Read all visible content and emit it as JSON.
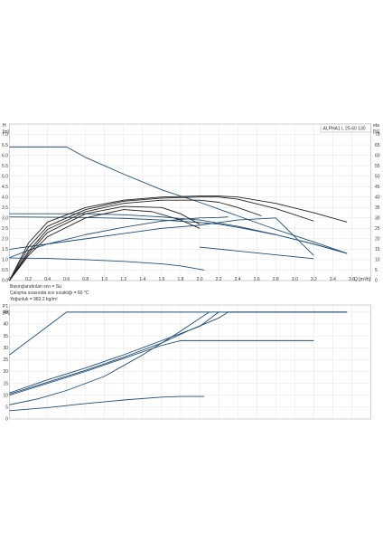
{
  "chart_data": [
    {
      "type": "line",
      "title": "ALPHA1 L 25-60  130",
      "xlabel": "Q [m³/h]",
      "ylabel_left_symbol": "H",
      "ylabel_left_unit": "[m]",
      "ylabel_right_symbol": "eta",
      "ylabel_right_unit": "[%]",
      "xlim": [
        0,
        3.8
      ],
      "ylim": [
        0,
        7.5
      ],
      "ylim_right": [
        0,
        75
      ],
      "x_ticks": [
        "0",
        "0.2",
        "0.4",
        "0.6",
        "0.8",
        "1.0",
        "1.2",
        "1.4",
        "1.6",
        "1.8",
        "2.0",
        "2.2",
        "2.4",
        "2.6",
        "2.8",
        "3.0",
        "3.2",
        "3.4",
        "3.6"
      ],
      "y_ticks": [
        "0.0",
        "0.5",
        "1.0",
        "1.5",
        "2.0",
        "2.5",
        "3.0",
        "3.5",
        "4.0",
        "4.5",
        "5.0",
        "5.5",
        "6.0",
        "6.5",
        "7.0"
      ],
      "y_ticks_right": [
        "0",
        "5",
        "10",
        "15",
        "20",
        "25",
        "30",
        "35",
        "40",
        "45",
        "50",
        "55",
        "60",
        "65",
        "70"
      ],
      "grid": true,
      "notes": [
        "Basınçlandırılan sıvı = Su",
        "Çalışma sırasında sıvı sıcaklığı = 60 °C",
        "Yoğunluk = 983.2 kg/m³"
      ],
      "series": [
        {
          "color": "#1f4e79",
          "width": 0.9,
          "x": [
            0,
            0.6,
            0.8,
            1.2,
            1.6,
            2.0,
            2.4,
            2.8,
            3.2,
            3.55
          ],
          "y": [
            6.4,
            6.4,
            5.9,
            5.1,
            4.35,
            3.75,
            3.1,
            2.45,
            1.85,
            1.3
          ]
        },
        {
          "color": "#1f4e79",
          "width": 0.9,
          "x": [
            0,
            0.8,
            1.2,
            1.6,
            2.0,
            2.2,
            2.4,
            2.8,
            3.2,
            3.55
          ],
          "y": [
            3.2,
            3.2,
            3.15,
            3.05,
            2.9,
            2.75,
            2.6,
            2.2,
            1.75,
            1.3
          ]
        },
        {
          "color": "#1f4e79",
          "width": 0.9,
          "x": [
            0,
            0.8,
            1.2,
            1.6,
            2.0,
            2.2,
            2.4,
            2.8,
            3.2,
            3.55
          ],
          "y": [
            3.05,
            3.02,
            2.98,
            2.9,
            2.78,
            2.7,
            2.55,
            2.2,
            1.75,
            1.3
          ]
        },
        {
          "color": "#1f4e79",
          "width": 0.9,
          "x": [
            0,
            0.4,
            0.8,
            1.2,
            1.6,
            2.0,
            2.4,
            2.8,
            3.2
          ],
          "y": [
            1.5,
            1.75,
            2.0,
            2.25,
            2.5,
            2.65,
            2.9,
            3.0,
            1.2
          ]
        },
        {
          "color": "#1f4e79",
          "width": 0.9,
          "x": [
            0,
            0.2,
            0.4,
            0.8,
            1.2,
            1.6,
            2.0,
            2.2,
            2.3
          ],
          "y": [
            1.1,
            1.45,
            1.75,
            2.2,
            2.55,
            2.85,
            3.0,
            3.02,
            3.05
          ]
        },
        {
          "color": "#1f4e79",
          "width": 0.9,
          "x": [
            0,
            0.4,
            0.8,
            1.2,
            1.6,
            1.8,
            2.05
          ],
          "y": [
            1.08,
            1.06,
            1.0,
            0.92,
            0.8,
            0.7,
            0.5
          ]
        },
        {
          "color": "#1f4e79",
          "width": 0.9,
          "x": [
            2.0,
            3.2
          ],
          "y": [
            1.6,
            1.05
          ]
        },
        {
          "color": "#222222",
          "width": 0.9,
          "x": [
            0,
            0.2,
            0.4,
            0.8,
            1.2,
            1.6,
            2.0,
            2.2,
            2.4,
            2.8,
            3.2,
            3.55
          ],
          "y": [
            0,
            1.8,
            2.8,
            3.5,
            3.85,
            4.0,
            4.05,
            4.05,
            4.0,
            3.7,
            3.25,
            2.8
          ]
        },
        {
          "color": "#222222",
          "width": 0.9,
          "x": [
            0,
            0.2,
            0.4,
            0.8,
            1.2,
            1.6,
            2.0,
            2.2,
            2.4,
            2.8,
            3.2
          ],
          "y": [
            0,
            1.6,
            2.6,
            3.4,
            3.8,
            3.95,
            4.0,
            4.0,
            3.9,
            3.45,
            2.85
          ]
        },
        {
          "color": "#222222",
          "width": 0.9,
          "x": [
            0,
            0.2,
            0.4,
            0.8,
            1.2,
            1.6,
            2.0,
            2.2,
            2.4,
            2.65
          ],
          "y": [
            0,
            1.4,
            2.45,
            3.3,
            3.7,
            3.85,
            3.85,
            3.75,
            3.5,
            3.1
          ]
        },
        {
          "color": "#222222",
          "width": 0.9,
          "x": [
            0,
            0.2,
            0.4,
            0.8,
            1.2,
            1.6,
            1.8,
            2.0
          ],
          "y": [
            0,
            1.3,
            2.3,
            3.2,
            3.55,
            3.5,
            3.2,
            2.7
          ]
        },
        {
          "color": "#222222",
          "width": 0.9,
          "x": [
            0,
            0.2,
            0.4,
            0.8,
            1.2,
            1.5,
            1.8,
            2.0
          ],
          "y": [
            0,
            1.2,
            2.1,
            3.0,
            3.4,
            3.3,
            2.9,
            2.5
          ]
        }
      ]
    },
    {
      "type": "line",
      "ylabel_left_symbol": "P1",
      "ylabel_left_unit": "[W]",
      "xlim": [
        0,
        3.8
      ],
      "ylim": [
        0,
        48
      ],
      "y_ticks": [
        "0",
        "5",
        "10",
        "15",
        "20",
        "25",
        "30",
        "35",
        "40",
        "45"
      ],
      "grid": true,
      "series": [
        {
          "color": "#1f4e79",
          "width": 0.9,
          "x": [
            0,
            0.6,
            3.55
          ],
          "y": [
            27,
            45,
            45
          ]
        },
        {
          "color": "#1f4e79",
          "width": 0.9,
          "x": [
            0,
            0.4,
            0.8,
            1.2,
            1.6,
            1.9,
            2.2,
            2.3,
            3.55
          ],
          "y": [
            10.5,
            15.5,
            20.5,
            26,
            32,
            37.5,
            42.5,
            45,
            45
          ]
        },
        {
          "color": "#1f4e79",
          "width": 0.9,
          "x": [
            0,
            0.4,
            0.8,
            1.2,
            1.6,
            2.0,
            2.2
          ],
          "y": [
            11,
            16.5,
            21.5,
            27,
            33,
            39,
            45
          ]
        },
        {
          "color": "#1f4e79",
          "width": 0.9,
          "x": [
            0,
            0.4,
            0.8,
            1.2,
            1.6,
            1.8,
            3.2
          ],
          "y": [
            10,
            15,
            20,
            25.5,
            31,
            33,
            33
          ]
        },
        {
          "color": "#1f4e79",
          "width": 0.9,
          "x": [
            0,
            0.3,
            0.6,
            1.0,
            1.4,
            1.8,
            2.1
          ],
          "y": [
            6,
            8.5,
            12,
            18,
            27,
            37,
            45
          ]
        },
        {
          "color": "#1f4e79",
          "width": 0.9,
          "x": [
            0,
            0.4,
            0.8,
            1.2,
            1.6,
            1.8,
            2.05
          ],
          "y": [
            3.5,
            4.8,
            6.5,
            8.0,
            9.2,
            9.5,
            9.5
          ]
        }
      ]
    }
  ]
}
